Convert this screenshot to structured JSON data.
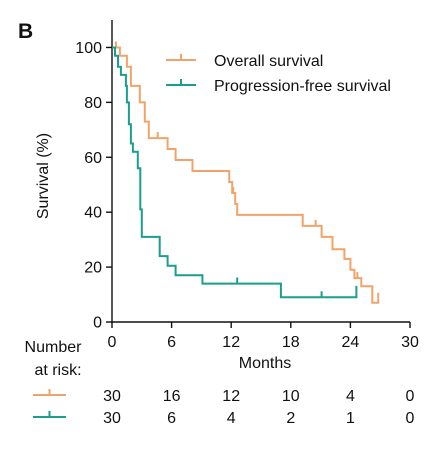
{
  "chart_data": {
    "type": "line",
    "panel_label": "B",
    "xlabel": "Months",
    "ylabel": "Survival (%)",
    "xlim": [
      0,
      30
    ],
    "ylim": [
      0,
      110
    ],
    "x_ticks": [
      "0",
      "6",
      "12",
      "18",
      "24",
      "30"
    ],
    "y_ticks": [
      "0",
      "20",
      "40",
      "60",
      "80",
      "100"
    ],
    "grid": false,
    "legend_position": "top-right",
    "colors": {
      "os": "#F0A46A",
      "pfs": "#1A9E8F"
    },
    "series": [
      {
        "name": "Overall survival",
        "key": "os",
        "points": [
          [
            0,
            100
          ],
          [
            0.8,
            100
          ],
          [
            0.8,
            97
          ],
          [
            1.5,
            97
          ],
          [
            1.5,
            93
          ],
          [
            1.9,
            93
          ],
          [
            1.9,
            86
          ],
          [
            2.8,
            86
          ],
          [
            2.8,
            80
          ],
          [
            3.3,
            80
          ],
          [
            3.3,
            73
          ],
          [
            3.7,
            73
          ],
          [
            3.7,
            67
          ],
          [
            5.6,
            67
          ],
          [
            5.6,
            63
          ],
          [
            6.4,
            63
          ],
          [
            6.4,
            59
          ],
          [
            8.1,
            59
          ],
          [
            8.1,
            55
          ],
          [
            11.8,
            55
          ],
          [
            11.8,
            51
          ],
          [
            12.1,
            51
          ],
          [
            12.1,
            47
          ],
          [
            12.4,
            47
          ],
          [
            12.4,
            43
          ],
          [
            12.6,
            43
          ],
          [
            12.6,
            39
          ],
          [
            19.2,
            39
          ],
          [
            19.2,
            35
          ],
          [
            21.1,
            35
          ],
          [
            21.1,
            31
          ],
          [
            22.2,
            31
          ],
          [
            22.2,
            26.5
          ],
          [
            23.4,
            26.5
          ],
          [
            23.4,
            23
          ],
          [
            24.0,
            23
          ],
          [
            24.0,
            19
          ],
          [
            24.4,
            19
          ],
          [
            24.4,
            16
          ],
          [
            25.1,
            16
          ],
          [
            25.1,
            13
          ],
          [
            26.2,
            13
          ],
          [
            26.2,
            7
          ],
          [
            26.8,
            7
          ],
          [
            26.8,
            8.5
          ]
        ],
        "censor_x": [
          0.4,
          4.6,
          12.2,
          20.5,
          24.7,
          26.8
        ]
      },
      {
        "name": "Progression-free survival",
        "key": "pfs",
        "points": [
          [
            0,
            100
          ],
          [
            0.3,
            100
          ],
          [
            0.3,
            97
          ],
          [
            0.6,
            97
          ],
          [
            0.6,
            93
          ],
          [
            0.9,
            93
          ],
          [
            0.9,
            90
          ],
          [
            1.4,
            90
          ],
          [
            1.4,
            86
          ],
          [
            1.5,
            86
          ],
          [
            1.5,
            80
          ],
          [
            1.7,
            80
          ],
          [
            1.7,
            72
          ],
          [
            1.9,
            72
          ],
          [
            1.9,
            65
          ],
          [
            2.1,
            65
          ],
          [
            2.1,
            62
          ],
          [
            2.6,
            62
          ],
          [
            2.6,
            56
          ],
          [
            2.85,
            56
          ],
          [
            2.85,
            41
          ],
          [
            3.0,
            41
          ],
          [
            3.0,
            31
          ],
          [
            4.8,
            31
          ],
          [
            4.8,
            24
          ],
          [
            5.6,
            24
          ],
          [
            5.6,
            20.5
          ],
          [
            6.4,
            20.5
          ],
          [
            6.4,
            17
          ],
          [
            9.1,
            17
          ],
          [
            9.1,
            14
          ],
          [
            17.0,
            14
          ],
          [
            17.0,
            9
          ],
          [
            24.6,
            9
          ],
          [
            24.6,
            11
          ]
        ],
        "censor_x": [
          12.6,
          21.1,
          24.6
        ]
      }
    ],
    "risk_table": {
      "title_line1": "Number",
      "title_line2": "at risk:",
      "times": [
        0,
        6,
        12,
        18,
        24,
        30
      ],
      "rows": [
        {
          "key": "os",
          "values": [
            "30",
            "16",
            "12",
            "10",
            "4",
            "0"
          ]
        },
        {
          "key": "pfs",
          "values": [
            "30",
            "6",
            "4",
            "2",
            "1",
            "0"
          ]
        }
      ]
    }
  }
}
